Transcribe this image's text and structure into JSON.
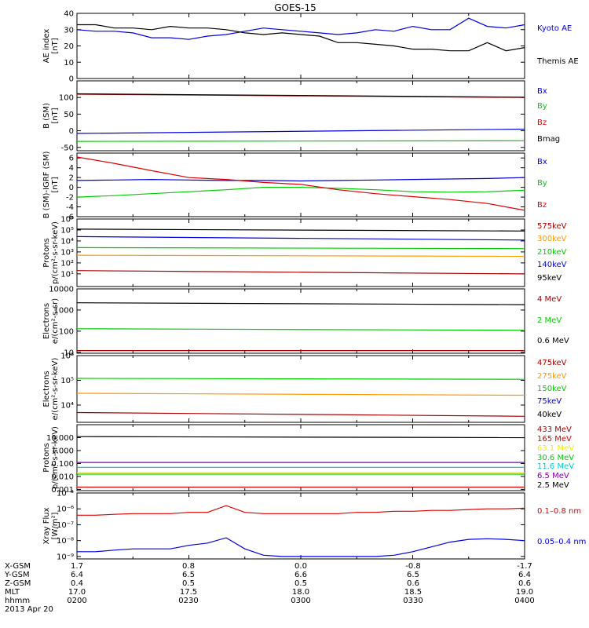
{
  "title": "GOES-15",
  "colors": {
    "black": "#000000",
    "blue": "#0000dd",
    "green": "#00cc00",
    "red": "#dd0000",
    "orange": "#ff9900",
    "darkred": "#aa0000",
    "yellow": "#eeee00",
    "cyan": "#00cccc",
    "purple": "#7f00aa"
  },
  "chart_data": [
    {
      "type": "line",
      "id": "ae",
      "ylabel": [
        "AE index",
        "[nT]"
      ],
      "ylim": [
        0,
        40
      ],
      "yticks": [
        "40",
        "30",
        "20",
        "10",
        "0"
      ],
      "ytick_values": [
        40,
        30,
        20,
        10,
        0
      ],
      "x": [
        0,
        1,
        2,
        3,
        4,
        5,
        6,
        7,
        8,
        9,
        10,
        11,
        12,
        13,
        14,
        15,
        16,
        17,
        18,
        19,
        20,
        21,
        22,
        23,
        24
      ],
      "series": [
        {
          "name": "Kyoto AE",
          "color": "blue",
          "values": [
            30,
            29,
            29,
            28,
            25,
            25,
            24,
            26,
            27,
            29,
            31,
            30,
            29,
            28,
            27,
            28,
            30,
            29,
            32,
            30,
            30,
            37,
            32,
            31,
            33
          ]
        },
        {
          "name": "Themis AE",
          "color": "black",
          "values": [
            33,
            33,
            31,
            31,
            30,
            32,
            31,
            31,
            30,
            28,
            27,
            28,
            27,
            26,
            22,
            22,
            21,
            20,
            18,
            18,
            17,
            17,
            22,
            17,
            19
          ]
        }
      ]
    },
    {
      "type": "line",
      "id": "bsm",
      "ylabel": [
        "B (SM)",
        "[nT]"
      ],
      "ylim": [
        -60,
        150
      ],
      "yticks": [
        "100",
        "50",
        "0",
        "-50"
      ],
      "ytick_values": [
        100,
        50,
        0,
        -50
      ],
      "x": [
        0,
        24
      ],
      "series": [
        {
          "name": "Bx",
          "color": "blue",
          "values": [
            -8,
            5
          ]
        },
        {
          "name": "By",
          "color": "green",
          "values": [
            -32,
            -30
          ]
        },
        {
          "name": "Bz",
          "color": "red",
          "values": [
            110,
            100
          ]
        },
        {
          "name": "Bmag",
          "color": "black",
          "values": [
            111,
            101
          ]
        }
      ]
    },
    {
      "type": "line",
      "id": "bigrf",
      "ylabel": [
        "B (SM)-IGRF (SM)",
        "[nT]"
      ],
      "ylim": [
        -6,
        7
      ],
      "yticks": [
        "6",
        "4",
        "2",
        "0",
        "-2",
        "-4",
        "-6"
      ],
      "ytick_values": [
        6,
        4,
        2,
        0,
        -2,
        -4,
        -6
      ],
      "x": [
        0,
        2,
        4,
        6,
        8,
        10,
        12,
        14,
        16,
        18,
        20,
        22,
        24
      ],
      "series": [
        {
          "name": "Bx",
          "color": "blue",
          "values": [
            1.4,
            1.5,
            1.6,
            1.5,
            1.4,
            1.4,
            1.3,
            1.4,
            1.5,
            1.6,
            1.7,
            1.8,
            2.0
          ]
        },
        {
          "name": "By",
          "color": "green",
          "values": [
            -2.0,
            -1.7,
            -1.3,
            -0.9,
            -0.5,
            0,
            0,
            -0.2,
            -0.5,
            -0.9,
            -1.0,
            -0.9,
            -0.6
          ]
        },
        {
          "name": "Bz",
          "color": "red",
          "values": [
            6.2,
            4.9,
            3.4,
            2.0,
            1.6,
            1.0,
            0.6,
            -0.5,
            -1.3,
            -1.9,
            -2.5,
            -3.3,
            -4.7
          ]
        }
      ]
    },
    {
      "type": "line",
      "id": "protons1",
      "ylabel": [
        "Protons",
        "p/(cm²-s-sr-keV)"
      ],
      "log": true,
      "ylim": [
        0.7,
        1000000
      ],
      "yticks": [
        "10⁶",
        "10⁵",
        "10⁴",
        "10³",
        "10²",
        "10¹"
      ],
      "ytick_values": [
        1000000,
        100000,
        10000,
        1000,
        100,
        10
      ],
      "x": [
        0,
        24
      ],
      "series": [
        {
          "name": "575keV",
          "color": "darkred",
          "values": [
            20,
            10
          ]
        },
        {
          "name": "300keV",
          "color": "orange",
          "values": [
            500,
            400
          ]
        },
        {
          "name": "210keV",
          "color": "green",
          "values": [
            2500,
            2000
          ]
        },
        {
          "name": "140keV",
          "color": "blue",
          "values": [
            25000,
            12000
          ]
        },
        {
          "name": "95keV",
          "color": "black",
          "values": [
            120000,
            80000
          ]
        }
      ]
    },
    {
      "type": "line",
      "id": "electrons1",
      "ylabel": [
        "Electrons",
        "e/(cm²-s-sr)"
      ],
      "log": true,
      "ylim": [
        9,
        10000
      ],
      "yticks": [
        "10000",
        "1000",
        "100",
        "10"
      ],
      "ytick_values": [
        10000,
        1000,
        100,
        10
      ],
      "x": [
        0,
        24
      ],
      "series": [
        {
          "name": "4 MeV",
          "color": "darkred",
          "values": [
            12,
            12
          ]
        },
        {
          "name": "2 MeV",
          "color": "green",
          "values": [
            130,
            110
          ]
        },
        {
          "name": "0.6 MeV",
          "color": "black",
          "values": [
            2200,
            1800
          ]
        }
      ]
    },
    {
      "type": "line",
      "id": "electrons2",
      "ylabel": [
        "Electrons",
        "e/(cm²-s-sr-keV)"
      ],
      "log": true,
      "ylim": [
        2000,
        1000000
      ],
      "yticks": [
        "10⁶",
        "10⁵",
        "10⁴"
      ],
      "ytick_values": [
        1000000,
        100000,
        10000
      ],
      "x": [
        0,
        24
      ],
      "series": [
        {
          "name": "475keV",
          "color": "darkred",
          "values": [
            5000,
            3500
          ]
        },
        {
          "name": "275keV",
          "color": "orange",
          "values": [
            30000,
            25000
          ]
        },
        {
          "name": "150keV",
          "color": "green",
          "values": [
            120000,
            110000
          ]
        },
        {
          "name": "75keV",
          "color": "blue",
          "values": [
            null,
            null
          ]
        },
        {
          "name": "40keV",
          "color": "black",
          "values": [
            null,
            null
          ]
        }
      ]
    },
    {
      "type": "line",
      "id": "protons2",
      "ylabel": [
        "Protons",
        "p/(cm²-s-sr-keV)"
      ],
      "log": true,
      "ylim": [
        0.0008,
        100
      ],
      "yticks": [
        "10.000",
        "1.000",
        "0.100",
        "0.010",
        "0.001"
      ],
      "ytick_values": [
        10,
        1,
        0.1,
        0.01,
        0.001
      ],
      "x": [
        0,
        24
      ],
      "series": [
        {
          "name": "433 MeV",
          "color": "darkred",
          "values": [
            null,
            null
          ]
        },
        {
          "name": "165 MeV",
          "color": "red",
          "values": [
            0.0015,
            0.0015
          ]
        },
        {
          "name": "63.1 MeV",
          "color": "yellow",
          "values": [
            0.02,
            0.02
          ]
        },
        {
          "name": "30.6 MeV",
          "color": "green",
          "values": [
            0.015,
            0.015
          ]
        },
        {
          "name": "11.6 MeV",
          "color": "cyan",
          "values": [
            0.05,
            0.05
          ]
        },
        {
          "name": "6.5 MeV",
          "color": "purple",
          "values": [
            0.12,
            0.12
          ]
        },
        {
          "name": "2.5 MeV",
          "color": "black",
          "values": [
            12,
            10
          ]
        }
      ]
    },
    {
      "type": "line",
      "id": "xray",
      "ylabel": [
        "Xray Flux",
        "[W/m²]"
      ],
      "log": true,
      "ylim": [
        7e-10,
        1e-05
      ],
      "yticks": [
        "10⁻⁵",
        "10⁻⁶",
        "10⁻⁷",
        "10⁻⁸",
        "10⁻⁹"
      ],
      "ytick_values": [
        1e-05,
        1e-06,
        1e-07,
        1e-08,
        1e-09
      ],
      "x": [
        0,
        1,
        2,
        3,
        4,
        5,
        6,
        7,
        8,
        9,
        10,
        11,
        12,
        13,
        14,
        15,
        16,
        17,
        18,
        19,
        20,
        21,
        22,
        23,
        24
      ],
      "series": [
        {
          "name": "0.1–0.8 nm",
          "color": "red",
          "values": [
            4e-07,
            4e-07,
            4.5e-07,
            5e-07,
            5e-07,
            5e-07,
            6e-07,
            6e-07,
            1.6e-06,
            6e-07,
            5e-07,
            5e-07,
            5e-07,
            5e-07,
            5e-07,
            6e-07,
            6e-07,
            7e-07,
            7e-07,
            8e-07,
            8e-07,
            9e-07,
            1e-06,
            1e-06,
            1.1e-06
          ]
        },
        {
          "name": "0.05–0.4 nm",
          "color": "blue",
          "values": [
            2e-09,
            2e-09,
            2.5e-09,
            3e-09,
            3e-09,
            3e-09,
            5e-09,
            7e-09,
            1.5e-08,
            3e-09,
            1.2e-09,
            1e-09,
            1e-09,
            1e-09,
            1e-09,
            1e-09,
            1e-09,
            1.2e-09,
            2e-09,
            4e-09,
            8e-09,
            1.2e-08,
            1.3e-08,
            1.2e-08,
            1e-08
          ]
        }
      ]
    }
  ],
  "x_axis": {
    "rows": [
      {
        "label": "X-GSM",
        "values": [
          "1.7",
          "0.8",
          "0.0",
          "-0.8",
          "-1.7"
        ]
      },
      {
        "label": "Y-GSM",
        "values": [
          "6.4",
          "6.5",
          "6.6",
          "6.5",
          "6.4"
        ]
      },
      {
        "label": "Z-GSM",
        "values": [
          "0.4",
          "0.5",
          "0.5",
          "0.6",
          "0.6"
        ]
      },
      {
        "label": "MLT",
        "values": [
          "17.0",
          "17.5",
          "18.0",
          "18.5",
          "19.0"
        ]
      },
      {
        "label": "hhmm",
        "values": [
          "0200",
          "0230",
          "0300",
          "0330",
          "0400"
        ]
      }
    ],
    "date": "2013 Apr 20"
  }
}
